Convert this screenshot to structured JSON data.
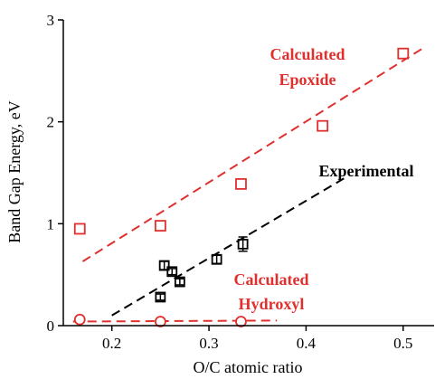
{
  "chart_data": {
    "type": "scatter",
    "xlabel": "O/C atomic ratio",
    "ylabel": "Band Gap Energy, eV",
    "xlim": [
      0.15,
      0.53
    ],
    "ylim": [
      0,
      3
    ],
    "x_ticks": [
      0.2,
      0.3,
      0.4,
      0.5
    ],
    "x_tick_labels": [
      "0.2",
      "0.3",
      "0.4",
      "0.5"
    ],
    "y_ticks": [
      0,
      1,
      2,
      3
    ],
    "y_tick_labels": [
      "0",
      "1",
      "2",
      "3"
    ],
    "grid": false,
    "colors": {
      "red": "#e0302e",
      "black": "#000000"
    },
    "series": [
      {
        "label": "Calculated Epoxide",
        "marker": "square",
        "color": "#e0302e",
        "points": [
          {
            "x": 0.167,
            "y": 0.95
          },
          {
            "x": 0.25,
            "y": 0.98
          },
          {
            "x": 0.333,
            "y": 1.39
          },
          {
            "x": 0.417,
            "y": 1.96
          },
          {
            "x": 0.5,
            "y": 2.67
          }
        ],
        "fit": {
          "x": [
            0.17,
            0.52
          ],
          "y": [
            0.63,
            2.72
          ]
        }
      },
      {
        "label": "Experimental",
        "marker": "square-errorbar",
        "color": "#000000",
        "points": [
          {
            "x": 0.25,
            "y": 0.28
          },
          {
            "x": 0.254,
            "y": 0.59
          },
          {
            "x": 0.262,
            "y": 0.53
          },
          {
            "x": 0.27,
            "y": 0.43
          },
          {
            "x": 0.308,
            "y": 0.65
          },
          {
            "x": 0.335,
            "y": 0.8
          }
        ],
        "errors": [
          0.03,
          0.04,
          0.03,
          0.03,
          0.04,
          0.07
        ],
        "fit": {
          "x": [
            0.2,
            0.44
          ],
          "y": [
            0.1,
            1.45
          ]
        }
      },
      {
        "label": "Calculated Hydroxyl",
        "marker": "circle",
        "color": "#e0302e",
        "points": [
          {
            "x": 0.167,
            "y": 0.06
          },
          {
            "x": 0.25,
            "y": 0.04
          },
          {
            "x": 0.333,
            "y": 0.04
          }
        ],
        "fit": {
          "x": [
            0.16,
            0.37
          ],
          "y": [
            0.04,
            0.05
          ]
        }
      }
    ],
    "annotations": {
      "epoxide_line1": "Calculated",
      "epoxide_line2": "Epoxide",
      "experimental": "Experimental",
      "hydroxyl_line1": "Calculated",
      "hydroxyl_line2": "Hydroxyl"
    }
  }
}
